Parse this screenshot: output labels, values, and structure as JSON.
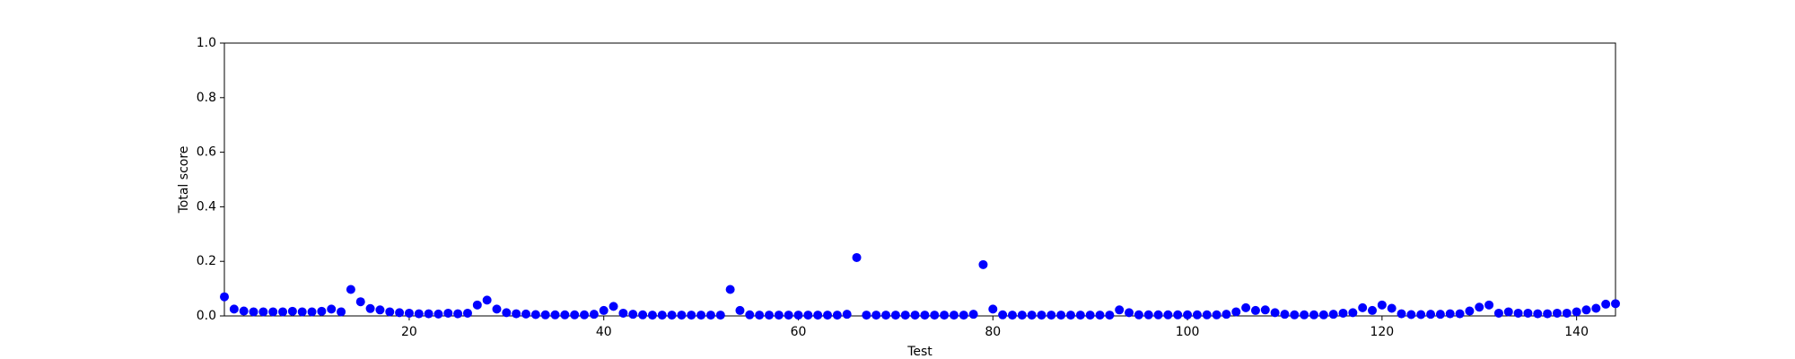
{
  "chart_data": {
    "type": "scatter",
    "xlabel": "Test",
    "ylabel": "Total score",
    "color": "#0000ff",
    "x": [
      1,
      2,
      3,
      4,
      5,
      6,
      7,
      8,
      9,
      10,
      11,
      12,
      13,
      14,
      15,
      16,
      17,
      18,
      19,
      20,
      21,
      22,
      23,
      24,
      25,
      26,
      27,
      28,
      29,
      30,
      31,
      32,
      33,
      34,
      35,
      36,
      37,
      38,
      39,
      40,
      41,
      42,
      43,
      44,
      45,
      46,
      47,
      48,
      49,
      50,
      51,
      52,
      53,
      54,
      55,
      56,
      57,
      58,
      59,
      60,
      61,
      62,
      63,
      64,
      65,
      66,
      67,
      68,
      69,
      70,
      71,
      72,
      73,
      74,
      75,
      76,
      77,
      78,
      79,
      80,
      81,
      82,
      83,
      84,
      85,
      86,
      87,
      88,
      89,
      90,
      91,
      92,
      93,
      94,
      95,
      96,
      97,
      98,
      99,
      100,
      101,
      102,
      103,
      104,
      105,
      106,
      107,
      108,
      109,
      110,
      111,
      112,
      113,
      114,
      115,
      116,
      117,
      118,
      119,
      120,
      121,
      122,
      123,
      124,
      125,
      126,
      127,
      128,
      129,
      130,
      131,
      132,
      133,
      134,
      135,
      136,
      137,
      138,
      139,
      140,
      141,
      142,
      143,
      144
    ],
    "values": [
      0.07,
      0.025,
      0.018,
      0.015,
      0.015,
      0.015,
      0.015,
      0.017,
      0.015,
      0.015,
      0.017,
      0.025,
      0.015,
      0.097,
      0.052,
      0.027,
      0.022,
      0.015,
      0.012,
      0.01,
      0.008,
      0.008,
      0.007,
      0.01,
      0.008,
      0.01,
      0.04,
      0.058,
      0.025,
      0.012,
      0.008,
      0.007,
      0.005,
      0.004,
      0.004,
      0.004,
      0.004,
      0.004,
      0.006,
      0.02,
      0.035,
      0.01,
      0.006,
      0.004,
      0.003,
      0.003,
      0.003,
      0.003,
      0.003,
      0.003,
      0.003,
      0.003,
      0.097,
      0.02,
      0.004,
      0.003,
      0.003,
      0.003,
      0.003,
      0.003,
      0.003,
      0.003,
      0.003,
      0.003,
      0.006,
      0.214,
      0.003,
      0.003,
      0.003,
      0.003,
      0.003,
      0.003,
      0.003,
      0.003,
      0.003,
      0.003,
      0.003,
      0.006,
      0.188,
      0.025,
      0.004,
      0.003,
      0.003,
      0.003,
      0.003,
      0.003,
      0.003,
      0.003,
      0.003,
      0.003,
      0.003,
      0.003,
      0.022,
      0.012,
      0.004,
      0.004,
      0.004,
      0.004,
      0.004,
      0.004,
      0.004,
      0.004,
      0.004,
      0.006,
      0.015,
      0.03,
      0.02,
      0.022,
      0.012,
      0.006,
      0.004,
      0.004,
      0.004,
      0.004,
      0.006,
      0.01,
      0.012,
      0.03,
      0.02,
      0.04,
      0.028,
      0.008,
      0.005,
      0.005,
      0.006,
      0.006,
      0.008,
      0.008,
      0.018,
      0.032,
      0.04,
      0.01,
      0.015,
      0.01,
      0.01,
      0.008,
      0.008,
      0.01,
      0.01,
      0.015,
      0.022,
      0.028,
      0.043,
      0.045
    ],
    "xlim": [
      1,
      144
    ],
    "xticks": [
      20,
      40,
      60,
      80,
      100,
      120,
      140
    ],
    "ylim": [
      0,
      1
    ],
    "yticks": [
      {
        "value": 0,
        "label": "0.0"
      },
      {
        "value": 0.2,
        "label": "0.2"
      },
      {
        "value": 0.4,
        "label": "0.4"
      },
      {
        "value": 0.6,
        "label": "0.6"
      },
      {
        "value": 0.8,
        "label": "0.8"
      },
      {
        "value": 1,
        "label": "1.0"
      }
    ],
    "grid": false
  }
}
